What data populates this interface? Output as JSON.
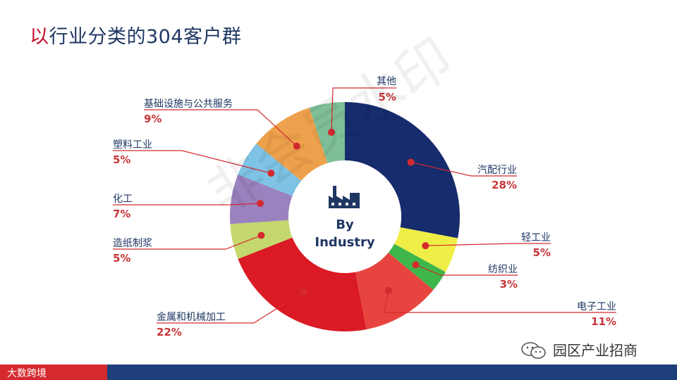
{
  "title": {
    "accent": "以",
    "rest": "行业分类的304客户群"
  },
  "center": {
    "line1": "By",
    "line2": "Industry"
  },
  "watermark": "非会员水印",
  "footer": {
    "logo_text": "大数跨境"
  },
  "wechat": {
    "account": "园区产业招商"
  },
  "colors": {
    "title": "#1f3763",
    "accent": "#c8102e",
    "footer_red": "#d42a2f",
    "footer_blue": "#1f3f7a"
  },
  "chart_data": {
    "type": "pie",
    "donut": true,
    "series": [
      {
        "name": "汽配行业",
        "percent_label": "28%",
        "value": 28,
        "color": "#162c6c"
      },
      {
        "name": "轻工业",
        "percent_label": "5%",
        "value": 5,
        "color": "#eeee47"
      },
      {
        "name": "纺织业",
        "percent_label": "3%",
        "value": 3,
        "color": "#3fb64a"
      },
      {
        "name": "电子工业",
        "percent_label": "11%",
        "value": 11,
        "color": "#e8443f"
      },
      {
        "name": "金属和机械加工",
        "percent_label": "22%",
        "value": 22,
        "color": "#da1a24"
      },
      {
        "name": "造纸制浆",
        "percent_label": "5%",
        "value": 5,
        "color": "#c4d86d"
      },
      {
        "name": "化工",
        "percent_label": "7%",
        "value": 7,
        "color": "#9a82be"
      },
      {
        "name": "塑料工业",
        "percent_label": "5%",
        "value": 5,
        "color": "#7ec2e5"
      },
      {
        "name": "基础设施与公共服务",
        "percent_label": "9%",
        "value": 9,
        "color": "#eea14c"
      },
      {
        "name": "其他",
        "percent_label": "5%",
        "value": 5,
        "color": "#7fbf98"
      }
    ]
  }
}
